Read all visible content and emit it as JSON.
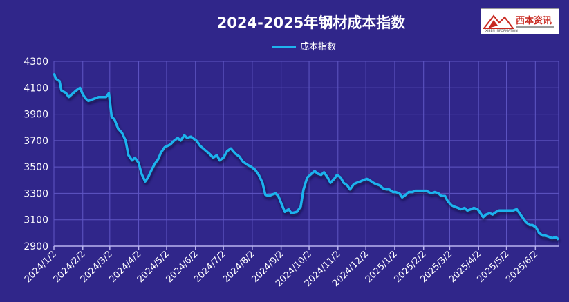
{
  "colors": {
    "background": "#30268a",
    "line": "#1fb3ee",
    "grid": "#5f56c4",
    "logo_red": "#c8281f"
  },
  "logo": {
    "text": "西本资讯",
    "subtext": "XIBEN INFORMATION"
  },
  "chart_data": {
    "type": "line",
    "title": "2024-2025年钢材成本指数",
    "legend_position": "top-center",
    "grid": true,
    "ylim": [
      2900,
      4300
    ],
    "yticks": [
      2900,
      3100,
      3300,
      3500,
      3700,
      3900,
      4100,
      4300
    ],
    "xticks": [
      "2024/1/2",
      "2024/2/2",
      "2024/3/2",
      "2024/4/2",
      "2024/5/2",
      "2024/6/2",
      "2024/7/2",
      "2024/8/2",
      "2024/9/2",
      "2024/10/2",
      "2024/11/2",
      "2024/12/2",
      "2025/1/2",
      "2025/2/2",
      "2025/3/2",
      "2025/4/2",
      "2025/5/2",
      "2025/6/2"
    ],
    "x_range": [
      "2024-01-02",
      "2025-06-27"
    ],
    "series": [
      {
        "name": "成本指数",
        "points": [
          [
            "2024-01-02",
            4210
          ],
          [
            "2024-01-04",
            4170
          ],
          [
            "2024-01-08",
            4150
          ],
          [
            "2024-01-10",
            4080
          ],
          [
            "2024-01-15",
            4060
          ],
          [
            "2024-01-18",
            4030
          ],
          [
            "2024-01-22",
            4055
          ],
          [
            "2024-01-26",
            4080
          ],
          [
            "2024-01-30",
            4100
          ],
          [
            "2024-02-02",
            4050
          ],
          [
            "2024-02-05",
            4020
          ],
          [
            "2024-02-08",
            4000
          ],
          [
            "2024-02-19",
            4030
          ],
          [
            "2024-02-27",
            4030
          ],
          [
            "2024-03-01",
            4060
          ],
          [
            "2024-03-04",
            3880
          ],
          [
            "2024-03-07",
            3860
          ],
          [
            "2024-03-11",
            3790
          ],
          [
            "2024-03-15",
            3760
          ],
          [
            "2024-03-19",
            3700
          ],
          [
            "2024-03-22",
            3590
          ],
          [
            "2024-03-26",
            3550
          ],
          [
            "2024-03-29",
            3570
          ],
          [
            "2024-04-02",
            3530
          ],
          [
            "2024-04-05",
            3450
          ],
          [
            "2024-04-09",
            3390
          ],
          [
            "2024-04-12",
            3420
          ],
          [
            "2024-04-16",
            3480
          ],
          [
            "2024-04-19",
            3520
          ],
          [
            "2024-04-23",
            3560
          ],
          [
            "2024-04-26",
            3610
          ],
          [
            "2024-04-30",
            3650
          ],
          [
            "2024-05-06",
            3670
          ],
          [
            "2024-05-10",
            3700
          ],
          [
            "2024-05-14",
            3720
          ],
          [
            "2024-05-17",
            3700
          ],
          [
            "2024-05-21",
            3740
          ],
          [
            "2024-05-24",
            3720
          ],
          [
            "2024-05-28",
            3730
          ],
          [
            "2024-06-03",
            3700
          ],
          [
            "2024-06-07",
            3660
          ],
          [
            "2024-06-12",
            3630
          ],
          [
            "2024-06-17",
            3600
          ],
          [
            "2024-06-21",
            3570
          ],
          [
            "2024-06-25",
            3590
          ],
          [
            "2024-06-28",
            3550
          ],
          [
            "2024-07-02",
            3570
          ],
          [
            "2024-07-06",
            3620
          ],
          [
            "2024-07-10",
            3640
          ],
          [
            "2024-07-15",
            3600
          ],
          [
            "2024-07-19",
            3580
          ],
          [
            "2024-07-23",
            3540
          ],
          [
            "2024-07-27",
            3520
          ],
          [
            "2024-08-01",
            3500
          ],
          [
            "2024-08-05",
            3480
          ],
          [
            "2024-08-09",
            3440
          ],
          [
            "2024-08-13",
            3380
          ],
          [
            "2024-08-16",
            3290
          ],
          [
            "2024-08-20",
            3280
          ],
          [
            "2024-08-23",
            3290
          ],
          [
            "2024-08-27",
            3300
          ],
          [
            "2024-08-30",
            3280
          ],
          [
            "2024-09-03",
            3210
          ],
          [
            "2024-09-06",
            3160
          ],
          [
            "2024-09-10",
            3180
          ],
          [
            "2024-09-13",
            3150
          ],
          [
            "2024-09-19",
            3160
          ],
          [
            "2024-09-23",
            3200
          ],
          [
            "2024-09-26",
            3330
          ],
          [
            "2024-09-30",
            3420
          ],
          [
            "2024-10-08",
            3470
          ],
          [
            "2024-10-11",
            3450
          ],
          [
            "2024-10-15",
            3440
          ],
          [
            "2024-10-18",
            3460
          ],
          [
            "2024-10-22",
            3420
          ],
          [
            "2024-10-25",
            3380
          ],
          [
            "2024-10-29",
            3410
          ],
          [
            "2024-11-01",
            3440
          ],
          [
            "2024-11-05",
            3420
          ],
          [
            "2024-11-08",
            3380
          ],
          [
            "2024-11-12",
            3360
          ],
          [
            "2024-11-15",
            3330
          ],
          [
            "2024-11-19",
            3370
          ],
          [
            "2024-11-22",
            3380
          ],
          [
            "2024-11-26",
            3390
          ],
          [
            "2024-11-29",
            3400
          ],
          [
            "2024-12-03",
            3410
          ],
          [
            "2024-12-06",
            3400
          ],
          [
            "2024-12-10",
            3380
          ],
          [
            "2024-12-13",
            3370
          ],
          [
            "2024-12-17",
            3360
          ],
          [
            "2024-12-20",
            3340
          ],
          [
            "2024-12-24",
            3330
          ],
          [
            "2024-12-27",
            3330
          ],
          [
            "2024-12-31",
            3310
          ],
          [
            "2025-01-03",
            3310
          ],
          [
            "2025-01-07",
            3300
          ],
          [
            "2025-01-10",
            3270
          ],
          [
            "2025-01-14",
            3290
          ],
          [
            "2025-01-17",
            3310
          ],
          [
            "2025-01-21",
            3310
          ],
          [
            "2025-01-24",
            3320
          ],
          [
            "2025-02-05",
            3320
          ],
          [
            "2025-02-10",
            3300
          ],
          [
            "2025-02-14",
            3310
          ],
          [
            "2025-02-18",
            3300
          ],
          [
            "2025-02-21",
            3280
          ],
          [
            "2025-02-25",
            3280
          ],
          [
            "2025-02-28",
            3240
          ],
          [
            "2025-03-04",
            3210
          ],
          [
            "2025-03-07",
            3200
          ],
          [
            "2025-03-11",
            3190
          ],
          [
            "2025-03-14",
            3180
          ],
          [
            "2025-03-18",
            3190
          ],
          [
            "2025-03-21",
            3170
          ],
          [
            "2025-03-25",
            3180
          ],
          [
            "2025-03-28",
            3190
          ],
          [
            "2025-04-01",
            3180
          ],
          [
            "2025-04-03",
            3160
          ],
          [
            "2025-04-07",
            3120
          ],
          [
            "2025-04-10",
            3140
          ],
          [
            "2025-04-14",
            3150
          ],
          [
            "2025-04-17",
            3140
          ],
          [
            "2025-04-21",
            3160
          ],
          [
            "2025-04-24",
            3170
          ],
          [
            "2025-04-28",
            3170
          ],
          [
            "2025-05-06",
            3170
          ],
          [
            "2025-05-09",
            3170
          ],
          [
            "2025-05-13",
            3180
          ],
          [
            "2025-05-16",
            3150
          ],
          [
            "2025-05-20",
            3110
          ],
          [
            "2025-05-23",
            3080
          ],
          [
            "2025-05-27",
            3060
          ],
          [
            "2025-05-30",
            3060
          ],
          [
            "2025-06-03",
            3040
          ],
          [
            "2025-06-06",
            3000
          ],
          [
            "2025-06-10",
            2980
          ],
          [
            "2025-06-13",
            2980
          ],
          [
            "2025-06-17",
            2970
          ],
          [
            "2025-06-20",
            2960
          ],
          [
            "2025-06-24",
            2970
          ],
          [
            "2025-06-27",
            2950
          ]
        ]
      }
    ]
  }
}
